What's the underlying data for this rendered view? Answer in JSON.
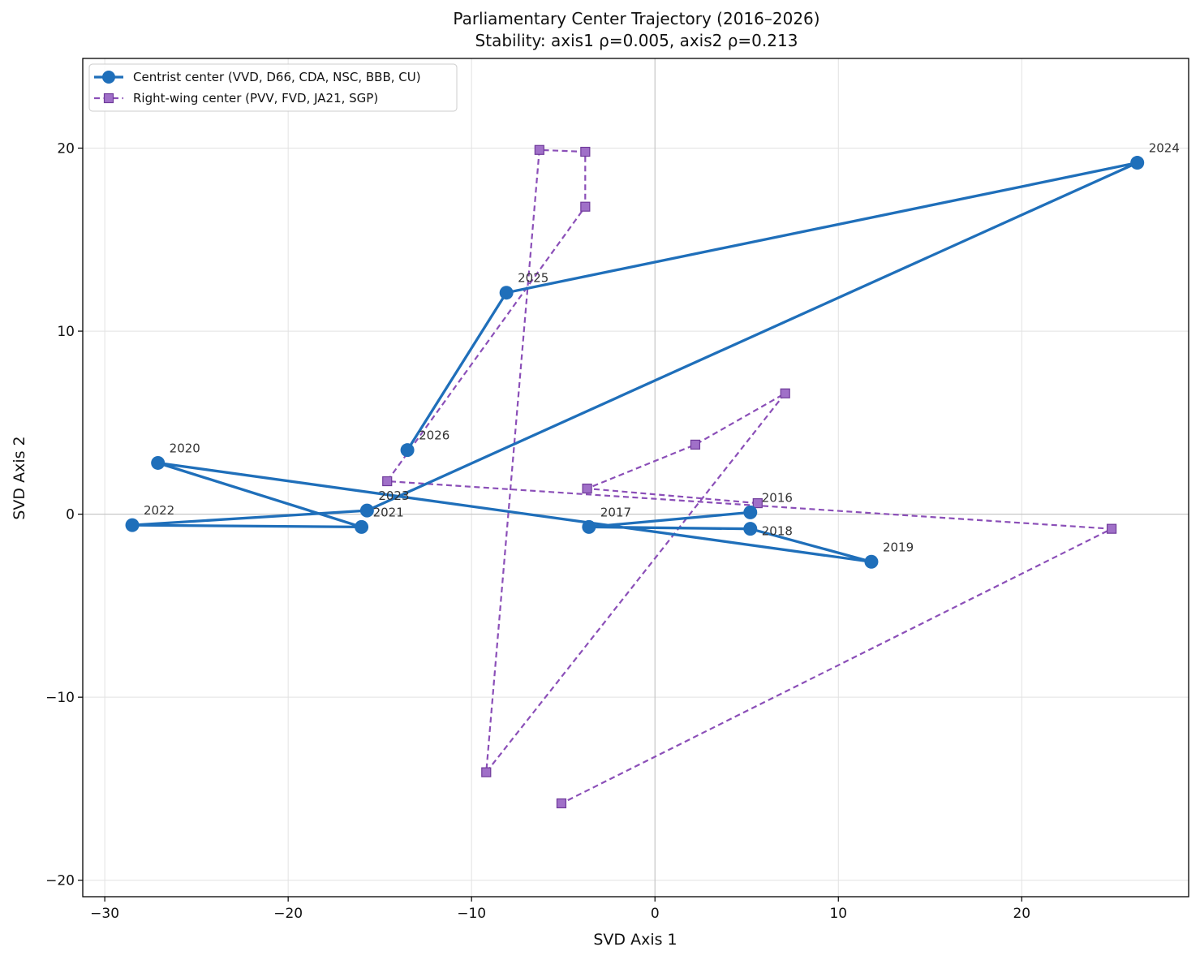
{
  "chart_data": {
    "type": "line",
    "title": "Parliamentary Center Trajectory (2016–2026)",
    "subtitle": "Stability: axis1 ρ=0.005, axis2 ρ=0.213",
    "xlabel": "SVD Axis 1",
    "ylabel": "SVD Axis 2",
    "xlim": [
      -31.2,
      29.1
    ],
    "ylim": [
      -20.9,
      24.9
    ],
    "xticks": [
      -30,
      -20,
      -10,
      0,
      10,
      20
    ],
    "yticks": [
      -20,
      -10,
      0,
      10,
      20
    ],
    "xtick_labels": [
      "−30",
      "−20",
      "−10",
      "0",
      "10",
      "20"
    ],
    "ytick_labels": [
      "−20",
      "−10",
      "0",
      "10",
      "20"
    ],
    "grid": true,
    "zero_lines": true,
    "legend_position": "upper left",
    "series": [
      {
        "name": "Centrist center (VVD, D66, CDA, NSC, BBB, CU)",
        "color": "#1f6fba",
        "marker": "circle",
        "linestyle": "solid",
        "points": [
          {
            "label": "2016",
            "x": 5.2,
            "y": 0.1
          },
          {
            "label": "2017",
            "x": -3.6,
            "y": -0.7
          },
          {
            "label": "2018",
            "x": 5.2,
            "y": -0.8
          },
          {
            "label": "2019",
            "x": 11.8,
            "y": -2.6
          },
          {
            "label": "2020",
            "x": -27.1,
            "y": 2.8
          },
          {
            "label": "2021",
            "x": -16.0,
            "y": -0.7
          },
          {
            "label": "2022",
            "x": -28.5,
            "y": -0.6
          },
          {
            "label": "2023",
            "x": -15.7,
            "y": 0.2
          },
          {
            "label": "2024",
            "x": 26.3,
            "y": 19.2
          },
          {
            "label": "2025",
            "x": -8.1,
            "y": 12.1
          },
          {
            "label": "2026",
            "x": -13.5,
            "y": 3.5
          }
        ]
      },
      {
        "name": "Right-wing center (PVV, FVD, JA21, SGP)",
        "color": "#8b4fb8",
        "marker": "square",
        "linestyle": "dashed",
        "points": [
          {
            "x": 5.6,
            "y": 0.6
          },
          {
            "x": -3.7,
            "y": 1.4
          },
          {
            "x": 2.2,
            "y": 3.8
          },
          {
            "x": 7.1,
            "y": 6.6
          },
          {
            "x": -9.2,
            "y": -14.1
          },
          {
            "x": -6.3,
            "y": 19.9
          },
          {
            "x": -3.8,
            "y": 19.8
          },
          {
            "x": -3.8,
            "y": 16.8
          },
          {
            "x": -14.6,
            "y": 1.8
          },
          {
            "x": 24.9,
            "y": -0.8
          },
          {
            "x": -5.1,
            "y": -15.8
          }
        ]
      }
    ]
  }
}
